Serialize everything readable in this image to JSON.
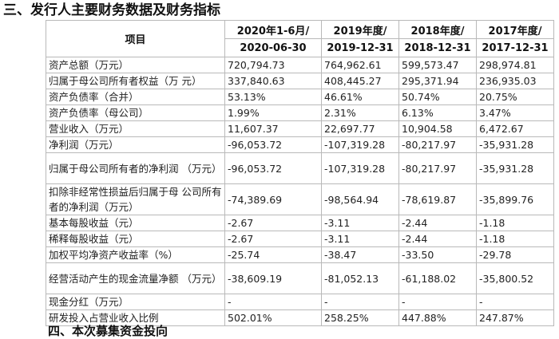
{
  "section_title": "三、发行人主要财务数据及财务指标",
  "table": {
    "item_header": "项目",
    "periods": [
      {
        "line1": "2020年1-6月/",
        "line2": "2020-06-30"
      },
      {
        "line1": "2019年度/",
        "line2": "2019-12-31"
      },
      {
        "line1": "2018年度/",
        "line2": "2018-12-31"
      },
      {
        "line1": "2017年度/",
        "line2": "2017-12-31"
      }
    ],
    "rows": [
      {
        "label": "资产总额（万元）",
        "values": [
          "720,794.73",
          "764,962.61",
          "599,573.47",
          "298,974.81"
        ]
      },
      {
        "label": "归属于母公司所有者权益（万 元）",
        "values": [
          "337,840.63",
          "408,445.27",
          "295,371.94",
          "236,935.03"
        ]
      },
      {
        "label": "资产负债率（合并）",
        "values": [
          "53.13%",
          "46.61%",
          "50.74%",
          "20.75%"
        ]
      },
      {
        "label": "资产负债率（母公司）",
        "values": [
          "1.99%",
          "2.31%",
          "6.13%",
          "3.47%"
        ]
      },
      {
        "label": "营业收入（万元）",
        "values": [
          "11,607.37",
          "22,697.77",
          "10,904.58",
          "6,472.67"
        ]
      },
      {
        "label": "净利润（万元）",
        "values": [
          "-96,053.72",
          "-107,319.28",
          "-80,217.97",
          "-35,931.28"
        ]
      },
      {
        "label": "归属于母公司所有者的净利润 （万元）",
        "values": [
          "-96,053.72",
          "-107,319.28",
          "-80,217.97",
          "-35,931.28"
        ]
      },
      {
        "label": "扣除非经常性损益后归属于母 公司所有者的净利润（万元）",
        "values": [
          "-74,389.69",
          "-98,564.94",
          "-78,619.87",
          "-35,899.76"
        ]
      },
      {
        "label": "基本每股收益（元）",
        "values": [
          "-2.67",
          "-3.11",
          "-2.44",
          "-1.18"
        ]
      },
      {
        "label": "稀释每股收益（元）",
        "values": [
          "-2.67",
          "-3.11",
          "-2.44",
          "-1.18"
        ]
      },
      {
        "label": "加权平均净资产收益率（%）",
        "values": [
          "-25.74",
          "-38.47",
          "-33.50",
          "-29.78"
        ]
      },
      {
        "label": "经营活动产生的现金流量净额 （万元）",
        "values": [
          "-38,609.19",
          "-81,052.13",
          "-61,188.02",
          "-35,800.52"
        ]
      },
      {
        "label": "现金分红（万元）",
        "values": [
          "-",
          "-",
          "-",
          "-"
        ]
      },
      {
        "label": "研发投入占营业收入比例",
        "values": [
          "502.01%",
          "258.25%",
          "447.88%",
          "247.87%"
        ]
      }
    ]
  },
  "next_section_partial": "四、本次募集资金投向"
}
